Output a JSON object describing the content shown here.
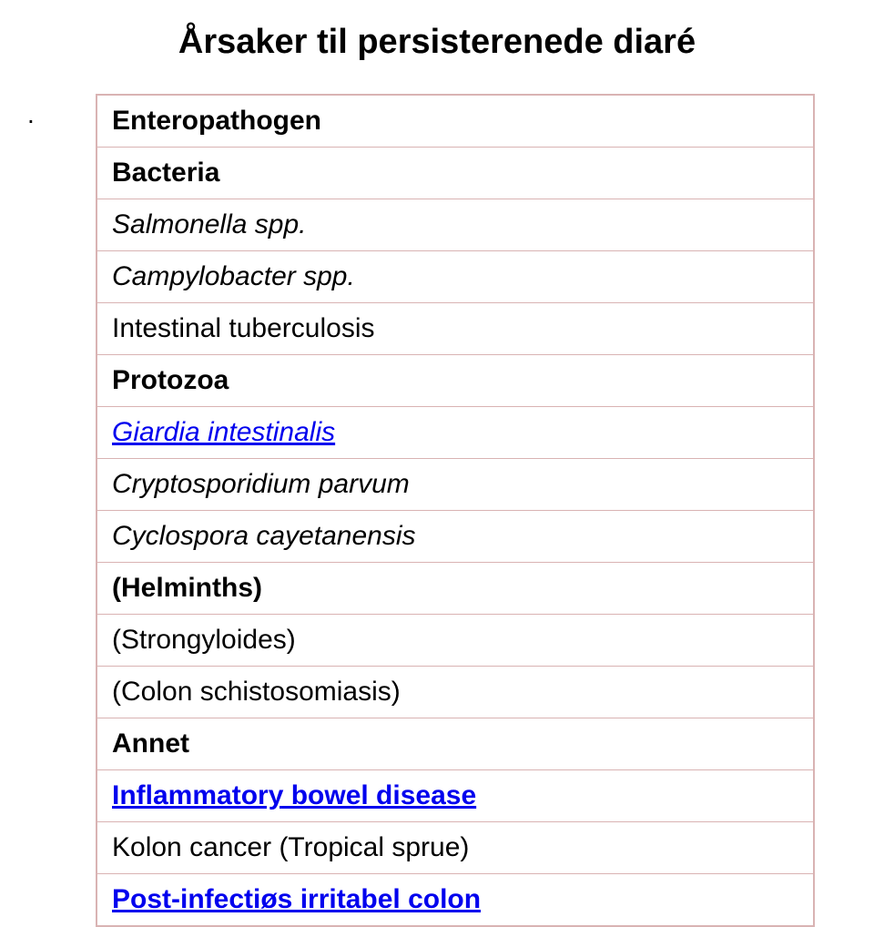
{
  "title": "Årsaker til persisterenede diaré",
  "dot": ".",
  "rows": [
    {
      "text": "Enteropathogen",
      "bold": true,
      "italic": false,
      "link": false
    },
    {
      "text": "Bacteria",
      "bold": true,
      "italic": false,
      "link": false
    },
    {
      "text": "Salmonella spp.",
      "bold": false,
      "italic": true,
      "link": false
    },
    {
      "text": "Campylobacter spp.",
      "bold": false,
      "italic": true,
      "link": false
    },
    {
      "text": "Intestinal tuberculosis",
      "bold": false,
      "italic": false,
      "link": false
    },
    {
      "text": "Protozoa",
      "bold": true,
      "italic": false,
      "link": false
    },
    {
      "text": "Giardia intestinalis",
      "bold": false,
      "italic": true,
      "link": true
    },
    {
      "text": "Cryptosporidium parvum",
      "bold": false,
      "italic": true,
      "link": false
    },
    {
      "text": "Cyclospora cayetanensis",
      "bold": false,
      "italic": true,
      "link": false
    },
    {
      "text": "(Helminths)",
      "bold": true,
      "italic": false,
      "link": false
    },
    {
      "text": "(Strongyloides)",
      "bold": false,
      "italic": false,
      "link": false
    },
    {
      "text": "(Colon schistosomiasis)",
      "bold": false,
      "italic": false,
      "link": false
    },
    {
      "text": "Annet",
      "bold": true,
      "italic": false,
      "link": false
    },
    {
      "text": "Inflammatory bowel disease",
      "bold": true,
      "italic": false,
      "link": true
    },
    {
      "text": "Kolon cancer (Tropical sprue)",
      "bold": false,
      "italic": false,
      "link": false
    },
    {
      "text": "Post-infectiøs irritabel colon",
      "bold": true,
      "italic": false,
      "link": true
    }
  ],
  "colors": {
    "border": "#d9b3b3",
    "text": "#000000",
    "link": "#0000ee",
    "background": "#ffffff"
  },
  "fontsizes": {
    "title": 38,
    "cell": 30
  }
}
